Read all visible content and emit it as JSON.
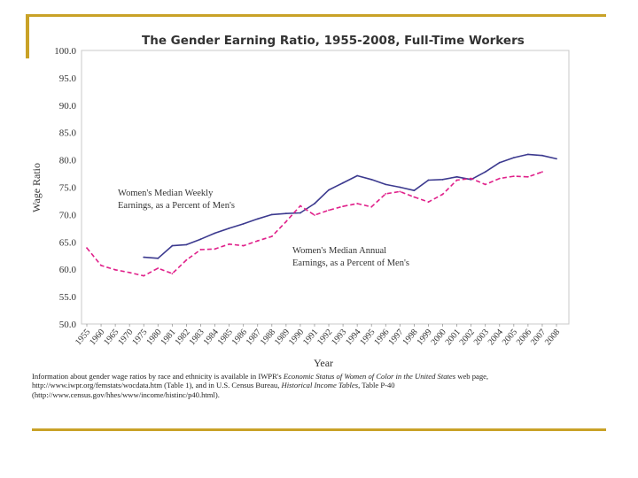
{
  "colors": {
    "accent_bar": "#c9a227",
    "weekly_series": "#3c3a8f",
    "annual_series": "#e0208a",
    "frame": "#c8c8c8"
  },
  "title": "The Gender Earning Ratio, 1955-2008, Full-Time Workers",
  "caption": {
    "part1": "Information about gender wage ratios by race and ethnicity is available in IWPR's ",
    "italic1": "Economic Status of Women of Color in the United States",
    "part2": " web page, http://www.iwpr.org/femstats/wocdata.htm (Table 1), and in U.S. Census Bureau, ",
    "italic2": "Historical Income Tables",
    "part3": ", Table P-40 (http://www.census.gov/hhes/www/income/histinc/p40.html)."
  },
  "chart_data": {
    "type": "line",
    "title": "The Gender Earning Ratio, 1955-2008, Full-Time Workers",
    "xlabel": "Year",
    "ylabel": "Wage Ratio",
    "ylim": [
      50,
      100
    ],
    "y_ticks": [
      "50.0",
      "55.0",
      "60.0",
      "65.0",
      "70.0",
      "75.0",
      "80.0",
      "85.0",
      "90.0",
      "95.0",
      "100.0"
    ],
    "categories": [
      "1955",
      "1960",
      "1965",
      "1970",
      "1975",
      "1980",
      "1981",
      "1982",
      "1983",
      "1984",
      "1985",
      "1986",
      "1987",
      "1988",
      "1989",
      "1990",
      "1991",
      "1992",
      "1993",
      "1994",
      "1995",
      "1996",
      "1997",
      "1998",
      "1999",
      "2000",
      "2001",
      "2002",
      "2003",
      "2004",
      "2005",
      "2006",
      "2007",
      "2008"
    ],
    "grid": false,
    "series": [
      {
        "label_lines": [
          "Women's Median Weekly",
          "Earnings, as a Percent of Men's"
        ],
        "style": "solid",
        "values": [
          null,
          null,
          null,
          null,
          62.2,
          62.0,
          64.3,
          64.5,
          65.5,
          66.6,
          67.5,
          68.3,
          69.2,
          70.0,
          70.2,
          70.3,
          72.0,
          74.5,
          75.8,
          77.1,
          76.4,
          75.5,
          75.0,
          74.4,
          76.3,
          76.4,
          76.9,
          76.4,
          77.8,
          79.5,
          80.4,
          81.0,
          80.8,
          80.2
        ]
      },
      {
        "label_lines": [
          "Women's Median Annual",
          "Earnings, as a Percent of Men's"
        ],
        "style": "dashed",
        "values": [
          63.9,
          60.7,
          59.9,
          59.4,
          58.8,
          60.2,
          59.2,
          61.7,
          63.6,
          63.7,
          64.6,
          64.3,
          65.2,
          66.0,
          68.7,
          71.6,
          69.9,
          70.8,
          71.5,
          72.0,
          71.4,
          73.8,
          74.2,
          73.2,
          72.3,
          73.7,
          76.3,
          76.6,
          75.5,
          76.6,
          77.0,
          76.9,
          77.8,
          null
        ]
      }
    ]
  }
}
